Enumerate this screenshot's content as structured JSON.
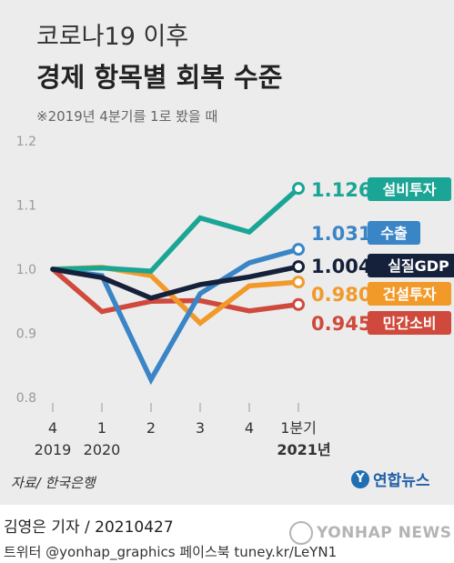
{
  "header": {
    "title_line1": "코로나19 이후",
    "title_line2": "경제 항목별 회복 수준",
    "note": "※2019년 4분기를 1로 봤을 때"
  },
  "chart_data": {
    "type": "line",
    "title": "코로나19 이후 경제 항목별 회복 수준",
    "note": "※2019년 4분기를 1로 봤을 때",
    "x": [
      "2019 Q4",
      "2020 Q1",
      "2020 Q2",
      "2020 Q3",
      "2020 Q4",
      "2021 Q1"
    ],
    "x_ticks": [
      {
        "top": "4",
        "bottom": "2019"
      },
      {
        "top": "1",
        "bottom": "2020"
      },
      {
        "top": "2",
        "bottom": ""
      },
      {
        "top": "3",
        "bottom": ""
      },
      {
        "top": "4",
        "bottom": ""
      },
      {
        "top": "1분기",
        "bottom": "2021년"
      }
    ],
    "y_ticks": [
      "1.2",
      "1.1",
      "1.0",
      "0.9",
      "0.8"
    ],
    "y_tick_values": [
      1.2,
      1.1,
      1.0,
      0.9,
      0.8
    ],
    "ylim": [
      0.8,
      1.2
    ],
    "grid": false,
    "series": [
      {
        "name": "설비투자",
        "label_value": "1.126",
        "color": "#1aa595",
        "values": [
          1.0,
          1.002,
          0.997,
          1.08,
          1.058,
          1.126
        ]
      },
      {
        "name": "수출",
        "label_value": "1.031",
        "color": "#3a85c6",
        "values": [
          1.0,
          0.99,
          0.828,
          0.962,
          1.01,
          1.031
        ]
      },
      {
        "name": "실질GDP",
        "label_value": "1.004",
        "color": "#15213a",
        "values": [
          1.0,
          0.987,
          0.955,
          0.976,
          0.988,
          1.004
        ]
      },
      {
        "name": "건설투자",
        "label_value": "0.980",
        "color": "#f19a2a",
        "values": [
          1.0,
          1.003,
          0.99,
          0.916,
          0.974,
          0.98
        ]
      },
      {
        "name": "민간소비",
        "label_value": "0.945",
        "color": "#cf4a3c",
        "values": [
          1.0,
          0.934,
          0.95,
          0.951,
          0.935,
          0.945
        ]
      }
    ]
  },
  "footer": {
    "source": "자료/ 한국은행",
    "logo_text": "연합뉴스",
    "byline": "김영은 기자 / 20210427",
    "social": "트위터 @yonhap_graphics  페이스북 tuney.kr/LeYN1",
    "watermark": "YONHAP NEWS"
  }
}
